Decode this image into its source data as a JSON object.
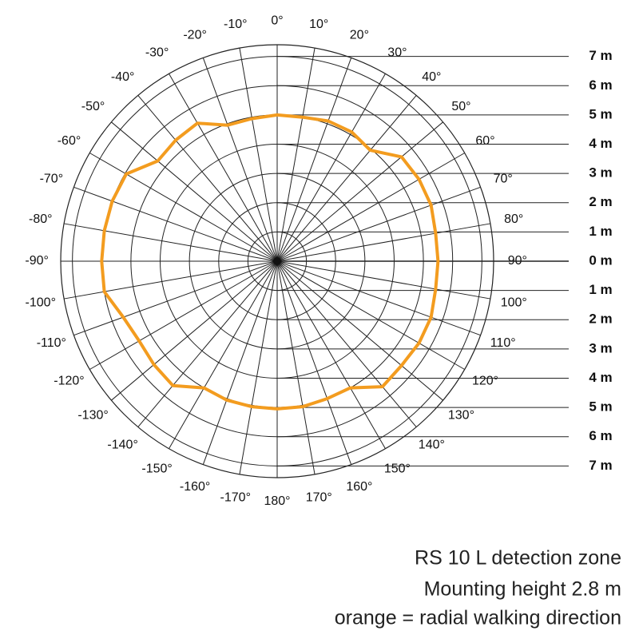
{
  "chart_data": {
    "type": "polar",
    "title": "RS 10 L detection zone",
    "subtitle": "Mounting height 2.8 m",
    "annotation": "orange = radial walking direction",
    "x": [
      0,
      10,
      20,
      30,
      40,
      50,
      60,
      70,
      80,
      90,
      100,
      110,
      120,
      130,
      140,
      150,
      160,
      170,
      180,
      -170,
      -160,
      -150,
      -140,
      -130,
      -120,
      -110,
      -100,
      -90,
      -80,
      -70,
      -60,
      -50,
      -40,
      -30,
      -20,
      -10
    ],
    "series": [
      {
        "name": "radial walking direction",
        "color": "#f39c1f",
        "values": [
          5.0,
          5.0,
          5.1,
          5.1,
          4.95,
          5.55,
          5.6,
          5.6,
          5.5,
          5.5,
          5.5,
          5.6,
          5.6,
          5.55,
          5.6,
          5.0,
          5.0,
          5.05,
          5.05,
          5.05,
          5.05,
          5.0,
          5.55,
          5.5,
          5.45,
          5.6,
          6.0,
          6.0,
          6.0,
          6.0,
          5.96,
          5.33,
          5.4,
          5.45,
          4.95,
          4.95
        ]
      }
    ],
    "ylim": [
      -7.4,
      7.4
    ],
    "yticks": [
      {
        "value": 7,
        "label": "7 m"
      },
      {
        "value": 6,
        "label": "6 m"
      },
      {
        "value": 5,
        "label": "5 m"
      },
      {
        "value": 4,
        "label": "4 m"
      },
      {
        "value": 3,
        "label": "3 m"
      },
      {
        "value": 2,
        "label": "2 m"
      },
      {
        "value": 1,
        "label": "1 m"
      },
      {
        "value": 0,
        "label": "0 m"
      },
      {
        "value": -1,
        "label": "1 m"
      },
      {
        "value": -2,
        "label": "2 m"
      },
      {
        "value": -3,
        "label": "3 m"
      },
      {
        "value": -4,
        "label": "4 m"
      },
      {
        "value": -5,
        "label": "5 m"
      },
      {
        "value": -6,
        "label": "6 m"
      },
      {
        "value": -7,
        "label": "7 m"
      }
    ],
    "xticks": [
      {
        "value": 0,
        "label": "0°"
      },
      {
        "value": 10,
        "label": "10°"
      },
      {
        "value": 20,
        "label": "20°"
      },
      {
        "value": 30,
        "label": "30°"
      },
      {
        "value": 40,
        "label": "40°"
      },
      {
        "value": 50,
        "label": "50°"
      },
      {
        "value": 60,
        "label": "60°"
      },
      {
        "value": 70,
        "label": "70°"
      },
      {
        "value": 80,
        "label": "80°"
      },
      {
        "value": 90,
        "label": "90°"
      },
      {
        "value": 100,
        "label": "100°"
      },
      {
        "value": 110,
        "label": "110°"
      },
      {
        "value": 120,
        "label": "120°"
      },
      {
        "value": 130,
        "label": "130°"
      },
      {
        "value": 140,
        "label": "140°"
      },
      {
        "value": 150,
        "label": "150°"
      },
      {
        "value": 160,
        "label": "160°"
      },
      {
        "value": 170,
        "label": "170°"
      },
      {
        "value": 180,
        "label": "180°"
      },
      {
        "value": -170,
        "label": "-170°"
      },
      {
        "value": -160,
        "label": "-160°"
      },
      {
        "value": -150,
        "label": "-150°"
      },
      {
        "value": -140,
        "label": "-140°"
      },
      {
        "value": -130,
        "label": "-130°"
      },
      {
        "value": -120,
        "label": "-120°"
      },
      {
        "value": -110,
        "label": "-110°"
      },
      {
        "value": -100,
        "label": "-100°"
      },
      {
        "value": -90,
        "label": "-90°"
      },
      {
        "value": -80,
        "label": "-80°"
      },
      {
        "value": -70,
        "label": "-70°"
      },
      {
        "value": -60,
        "label": "-60°"
      },
      {
        "value": -50,
        "label": "-50°"
      },
      {
        "value": -40,
        "label": "-40°"
      },
      {
        "value": -30,
        "label": "-30°"
      },
      {
        "value": -20,
        "label": "-20°"
      },
      {
        "value": -10,
        "label": "-10°"
      }
    ]
  }
}
